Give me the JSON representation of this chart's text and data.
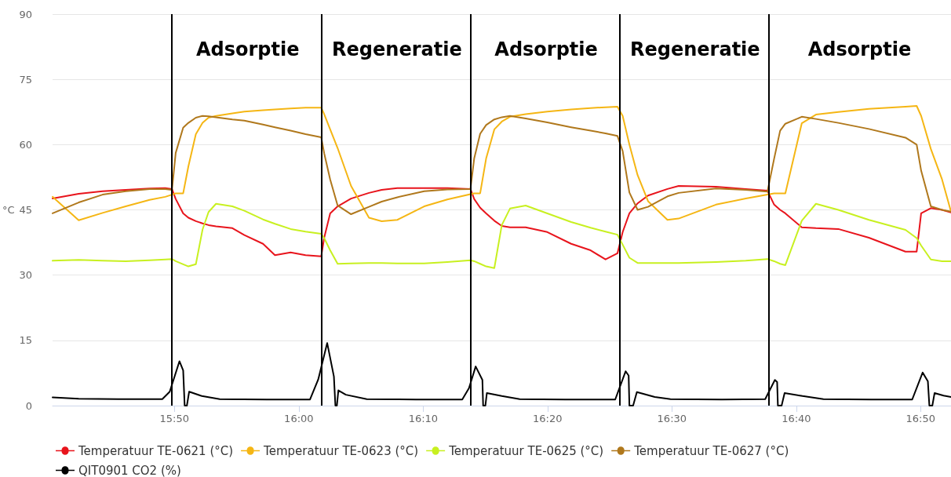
{
  "chart_data": {
    "type": "line",
    "ylabel": "°C",
    "xlim": [
      15.67,
      16.874
    ],
    "ylim": [
      0,
      90
    ],
    "xticks": [
      {
        "value": 15.8333,
        "label": "15:50"
      },
      {
        "value": 16,
        "label": "16:00"
      },
      {
        "value": 16.1667,
        "label": "16:10"
      },
      {
        "value": 16.3333,
        "label": "16:20"
      },
      {
        "value": 16.5,
        "label": "16:30"
      },
      {
        "value": 16.6667,
        "label": "16:40"
      },
      {
        "value": 16.8333,
        "label": "16:50"
      }
    ],
    "yticks": [
      0,
      15,
      30,
      45,
      60,
      75,
      90
    ],
    "grid": "y",
    "legend": "bottom left",
    "marker": "none",
    "line_style": "solid",
    "x": [
      15.67,
      15.705,
      15.737,
      15.768,
      15.8,
      15.821,
      15.83,
      15.835,
      15.845,
      15.852,
      15.862,
      15.871,
      15.879,
      15.889,
      15.911,
      15.927,
      15.952,
      15.968,
      15.989,
      16.009,
      16.03,
      16.034,
      16.042,
      16.052,
      16.07,
      16.094,
      16.111,
      16.132,
      16.168,
      16.199,
      16.23,
      16.235,
      16.243,
      16.251,
      16.262,
      16.272,
      16.283,
      16.304,
      16.333,
      16.365,
      16.391,
      16.411,
      16.427,
      16.434,
      16.443,
      16.454,
      16.468,
      16.494,
      16.509,
      16.559,
      16.599,
      16.628,
      16.637,
      16.645,
      16.652,
      16.674,
      16.693,
      16.723,
      16.764,
      16.813,
      16.828,
      16.834,
      16.847,
      16.862,
      16.874
    ],
    "series": [
      {
        "name": "Temperatuur TE-0621 (°C)",
        "color": "#e8141c",
        "values": [
          47.6,
          48.7,
          49.3,
          49.6,
          49.9,
          50.0,
          49.8,
          47.5,
          44.2,
          43.2,
          42.4,
          41.9,
          41.5,
          41.2,
          40.8,
          39.2,
          37.2,
          34.6,
          35.2,
          34.6,
          34.3,
          38.6,
          44.2,
          45.8,
          47.6,
          48.9,
          49.6,
          50.0,
          50.0,
          50.0,
          49.8,
          47.5,
          45.5,
          44.2,
          42.5,
          41.3,
          41.0,
          41.0,
          39.9,
          37.2,
          35.7,
          33.6,
          35.0,
          39.9,
          44.2,
          46.5,
          48.3,
          49.8,
          50.5,
          50.3,
          49.8,
          49.4,
          46.2,
          45.0,
          44.2,
          41.0,
          40.8,
          40.6,
          38.6,
          35.4,
          35.4,
          44.2,
          45.4,
          45.0,
          44.4
        ]
      },
      {
        "name": "Temperatuur TE-0623 (°C)",
        "color": "#f5b614",
        "values": [
          48.0,
          42.6,
          44.3,
          45.8,
          47.3,
          48.0,
          48.5,
          48.8,
          48.8,
          55.0,
          62.4,
          65.0,
          66.2,
          66.6,
          67.2,
          67.6,
          67.9,
          68.1,
          68.3,
          68.5,
          68.5,
          67.0,
          63.5,
          59.2,
          50.5,
          43.2,
          42.4,
          42.7,
          45.8,
          47.4,
          48.6,
          48.8,
          48.8,
          56.8,
          63.5,
          65.3,
          66.4,
          67.0,
          67.6,
          68.1,
          68.4,
          68.6,
          68.7,
          66.6,
          60.0,
          53.0,
          47.0,
          42.7,
          43.0,
          46.2,
          47.6,
          48.5,
          48.8,
          48.8,
          48.8,
          64.9,
          66.9,
          67.5,
          68.2,
          68.7,
          68.9,
          66.6,
          59.0,
          52.0,
          44.6
        ]
      },
      {
        "name": "Temperatuur TE-0625 (°C)",
        "color": "#c8f020",
        "values": [
          33.3,
          33.5,
          33.3,
          33.2,
          33.4,
          33.6,
          33.7,
          33.2,
          32.5,
          32.0,
          32.5,
          40.5,
          44.5,
          46.4,
          45.8,
          44.8,
          42.8,
          41.8,
          40.6,
          40.0,
          39.5,
          38.5,
          35.7,
          32.6,
          32.7,
          32.8,
          32.8,
          32.7,
          32.7,
          33.0,
          33.4,
          33.2,
          32.6,
          32.0,
          31.6,
          41.5,
          45.3,
          46.0,
          44.2,
          42.2,
          40.9,
          40.0,
          39.3,
          37.0,
          34.0,
          32.8,
          32.8,
          32.8,
          32.8,
          33.0,
          33.3,
          33.7,
          33.2,
          32.6,
          32.3,
          42.5,
          46.4,
          45.0,
          42.7,
          40.4,
          38.5,
          36.8,
          33.6,
          33.2,
          33.2
        ]
      },
      {
        "name": "Temperatuur TE-0627 (°C)",
        "color": "#b0781c",
        "values": [
          44.2,
          46.7,
          48.5,
          49.3,
          49.8,
          49.8,
          49.6,
          58.1,
          63.9,
          65.0,
          66.2,
          66.6,
          66.5,
          66.3,
          65.8,
          65.5,
          64.6,
          64.0,
          63.2,
          62.4,
          61.7,
          58.0,
          52.0,
          46.0,
          44.0,
          45.7,
          46.9,
          47.9,
          49.3,
          49.7,
          49.8,
          56.8,
          62.5,
          64.5,
          65.8,
          66.3,
          66.6,
          66.0,
          65.1,
          64.0,
          63.2,
          62.6,
          62.0,
          58.5,
          49.0,
          45.0,
          45.7,
          48.1,
          48.9,
          49.9,
          49.6,
          49.2,
          56.8,
          63.2,
          64.8,
          66.4,
          65.9,
          65.0,
          63.6,
          61.6,
          60.0,
          54.0,
          45.8,
          45.0,
          44.6
        ]
      },
      {
        "name": "QIT0901 CO2 (%)",
        "color": "#000000",
        "x": [
          15.67,
          15.705,
          15.758,
          15.817,
          15.827,
          15.84,
          15.845,
          15.847,
          15.85,
          15.853,
          15.87,
          15.894,
          15.957,
          16.015,
          16.026,
          16.038,
          16.047,
          16.049,
          16.051,
          16.053,
          16.063,
          16.091,
          16.157,
          16.219,
          16.228,
          16.237,
          16.246,
          16.247,
          16.25,
          16.252,
          16.272,
          16.296,
          16.357,
          16.424,
          16.438,
          16.442,
          16.443,
          16.448,
          16.453,
          16.477,
          16.498,
          16.567,
          16.625,
          16.638,
          16.641,
          16.642,
          16.647,
          16.651,
          16.675,
          16.703,
          16.767,
          16.822,
          16.836,
          16.843,
          16.845,
          16.849,
          16.852,
          16.864,
          16.874
        ],
        "values": [
          1.9,
          1.6,
          1.5,
          1.5,
          3.2,
          10.2,
          8.1,
          0,
          0,
          3.2,
          2.2,
          1.5,
          1.4,
          1.4,
          6.0,
          14.4,
          6.7,
          0,
          0,
          3.5,
          2.5,
          1.5,
          1.4,
          1.4,
          4.0,
          9.0,
          5.9,
          0,
          0,
          2.9,
          2.2,
          1.5,
          1.4,
          1.4,
          7.9,
          6.9,
          0,
          0,
          3.1,
          2.0,
          1.5,
          1.4,
          1.5,
          5.9,
          5.4,
          0,
          0,
          2.9,
          2.2,
          1.5,
          1.4,
          1.4,
          7.6,
          5.6,
          0,
          0,
          2.9,
          2.3,
          2.0
        ]
      }
    ],
    "ref_lines": [
      {
        "axis": "x",
        "value": 15.83,
        "color": "#000000"
      },
      {
        "axis": "x",
        "value": 16.033,
        "color": "#000000"
      },
      {
        "axis": "x",
        "value": 16.23,
        "color": "#000000"
      },
      {
        "axis": "x",
        "value": 16.433,
        "color": "#000000"
      },
      {
        "axis": "x",
        "value": 16.629,
        "color": "#000000"
      }
    ],
    "annotations": [
      "Adsorptie",
      "Regeneratie",
      "Adsorptie",
      "Regeneratie",
      "Adsorptie"
    ]
  }
}
